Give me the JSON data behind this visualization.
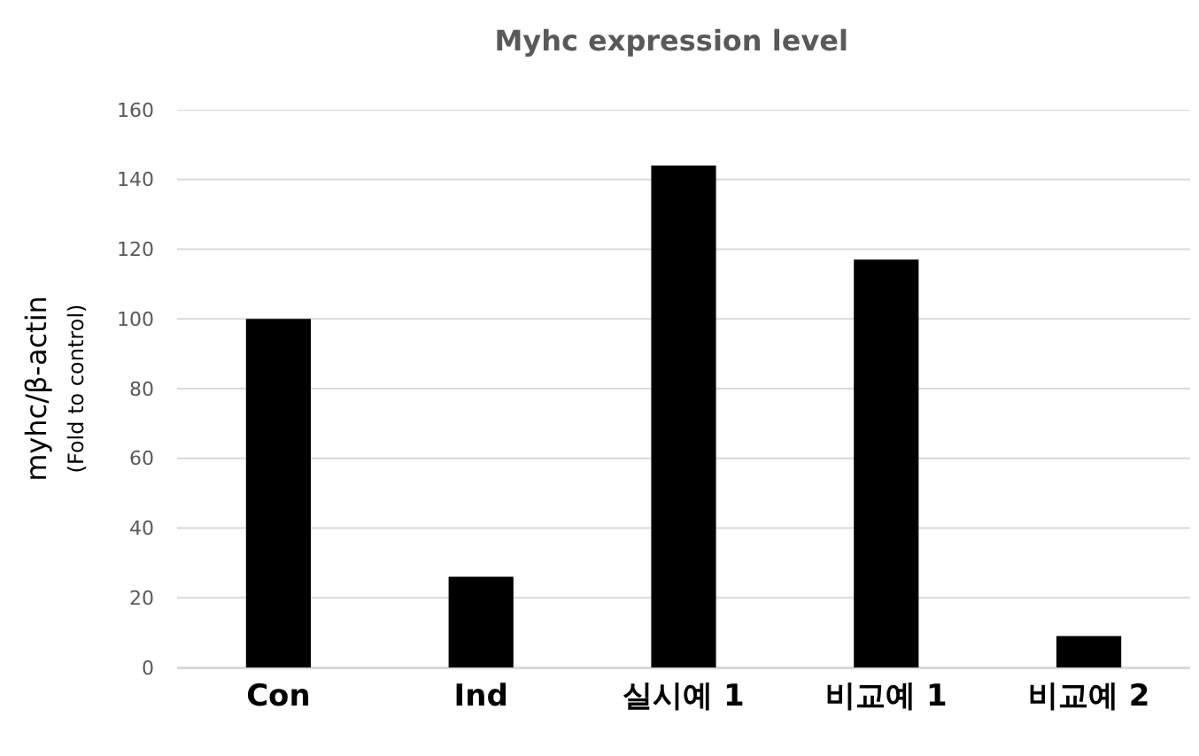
{
  "chart_data": {
    "type": "bar",
    "title": "Myhc expression level",
    "ylabel": "myhc/β-actin\n(Fold to control)",
    "categories": [
      "Con",
      "Ind",
      "실시예 1",
      "비교예 1",
      "비교예 2"
    ],
    "values": [
      100,
      26,
      144,
      117,
      9
    ],
    "color": "#000000",
    "ylim": [
      0,
      160
    ],
    "yticks": [
      0,
      20,
      40,
      60,
      80,
      100,
      120,
      140,
      160
    ],
    "grid": "y"
  }
}
